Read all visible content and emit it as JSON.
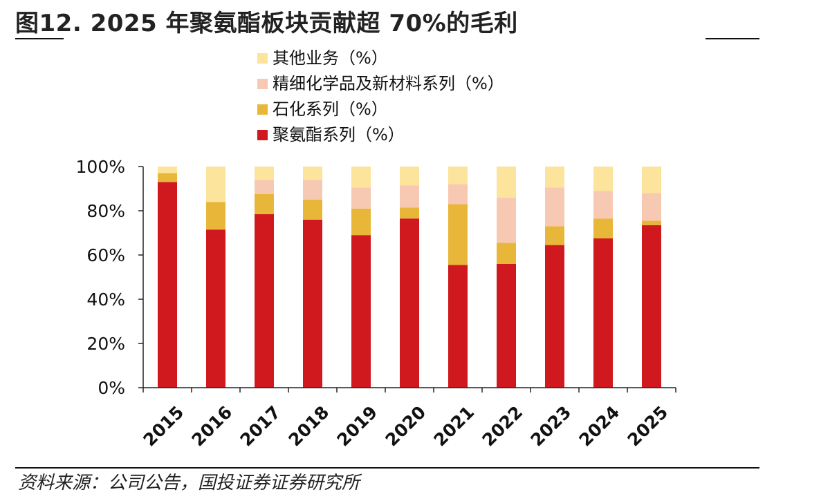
{
  "header": {
    "title": "图12. 2025 年聚氨酯板块贡献超 70%的毛利"
  },
  "footer": {
    "source": "资料来源：公司公告，国投证券证券研究所"
  },
  "chart_data": {
    "type": "bar",
    "stacked": true,
    "title": "",
    "xlabel": "",
    "ylabel": "",
    "ylim": [
      0,
      100
    ],
    "y_ticks": [
      "0%",
      "20%",
      "40%",
      "60%",
      "80%",
      "100%"
    ],
    "categories": [
      "2015",
      "2016",
      "2017",
      "2018",
      "2019",
      "2020",
      "2021",
      "2022",
      "2023",
      "2024",
      "2025"
    ],
    "legend_position": "top",
    "series": [
      {
        "name": "聚氨酯系列（%）",
        "color": "#D0191F",
        "values": [
          93,
          71.5,
          78.5,
          76,
          69,
          76.5,
          55.5,
          56,
          64.5,
          67.5,
          73.5
        ]
      },
      {
        "name": "石化系列（%）",
        "color": "#E8B73A",
        "values": [
          4,
          12.5,
          9,
          9,
          12,
          5,
          27.5,
          9.5,
          8.5,
          9,
          2
        ]
      },
      {
        "name": "精细化学品及新材料系列（%）",
        "color": "#F7C9B2",
        "values": [
          0,
          0,
          6.5,
          9,
          9.5,
          10,
          9,
          20.5,
          17.5,
          12.5,
          12.5
        ]
      },
      {
        "name": "其他业务（%）",
        "color": "#FCE49C",
        "values": [
          3,
          16,
          6,
          6,
          9.5,
          8.5,
          8,
          14,
          9.5,
          11,
          12
        ]
      }
    ]
  }
}
